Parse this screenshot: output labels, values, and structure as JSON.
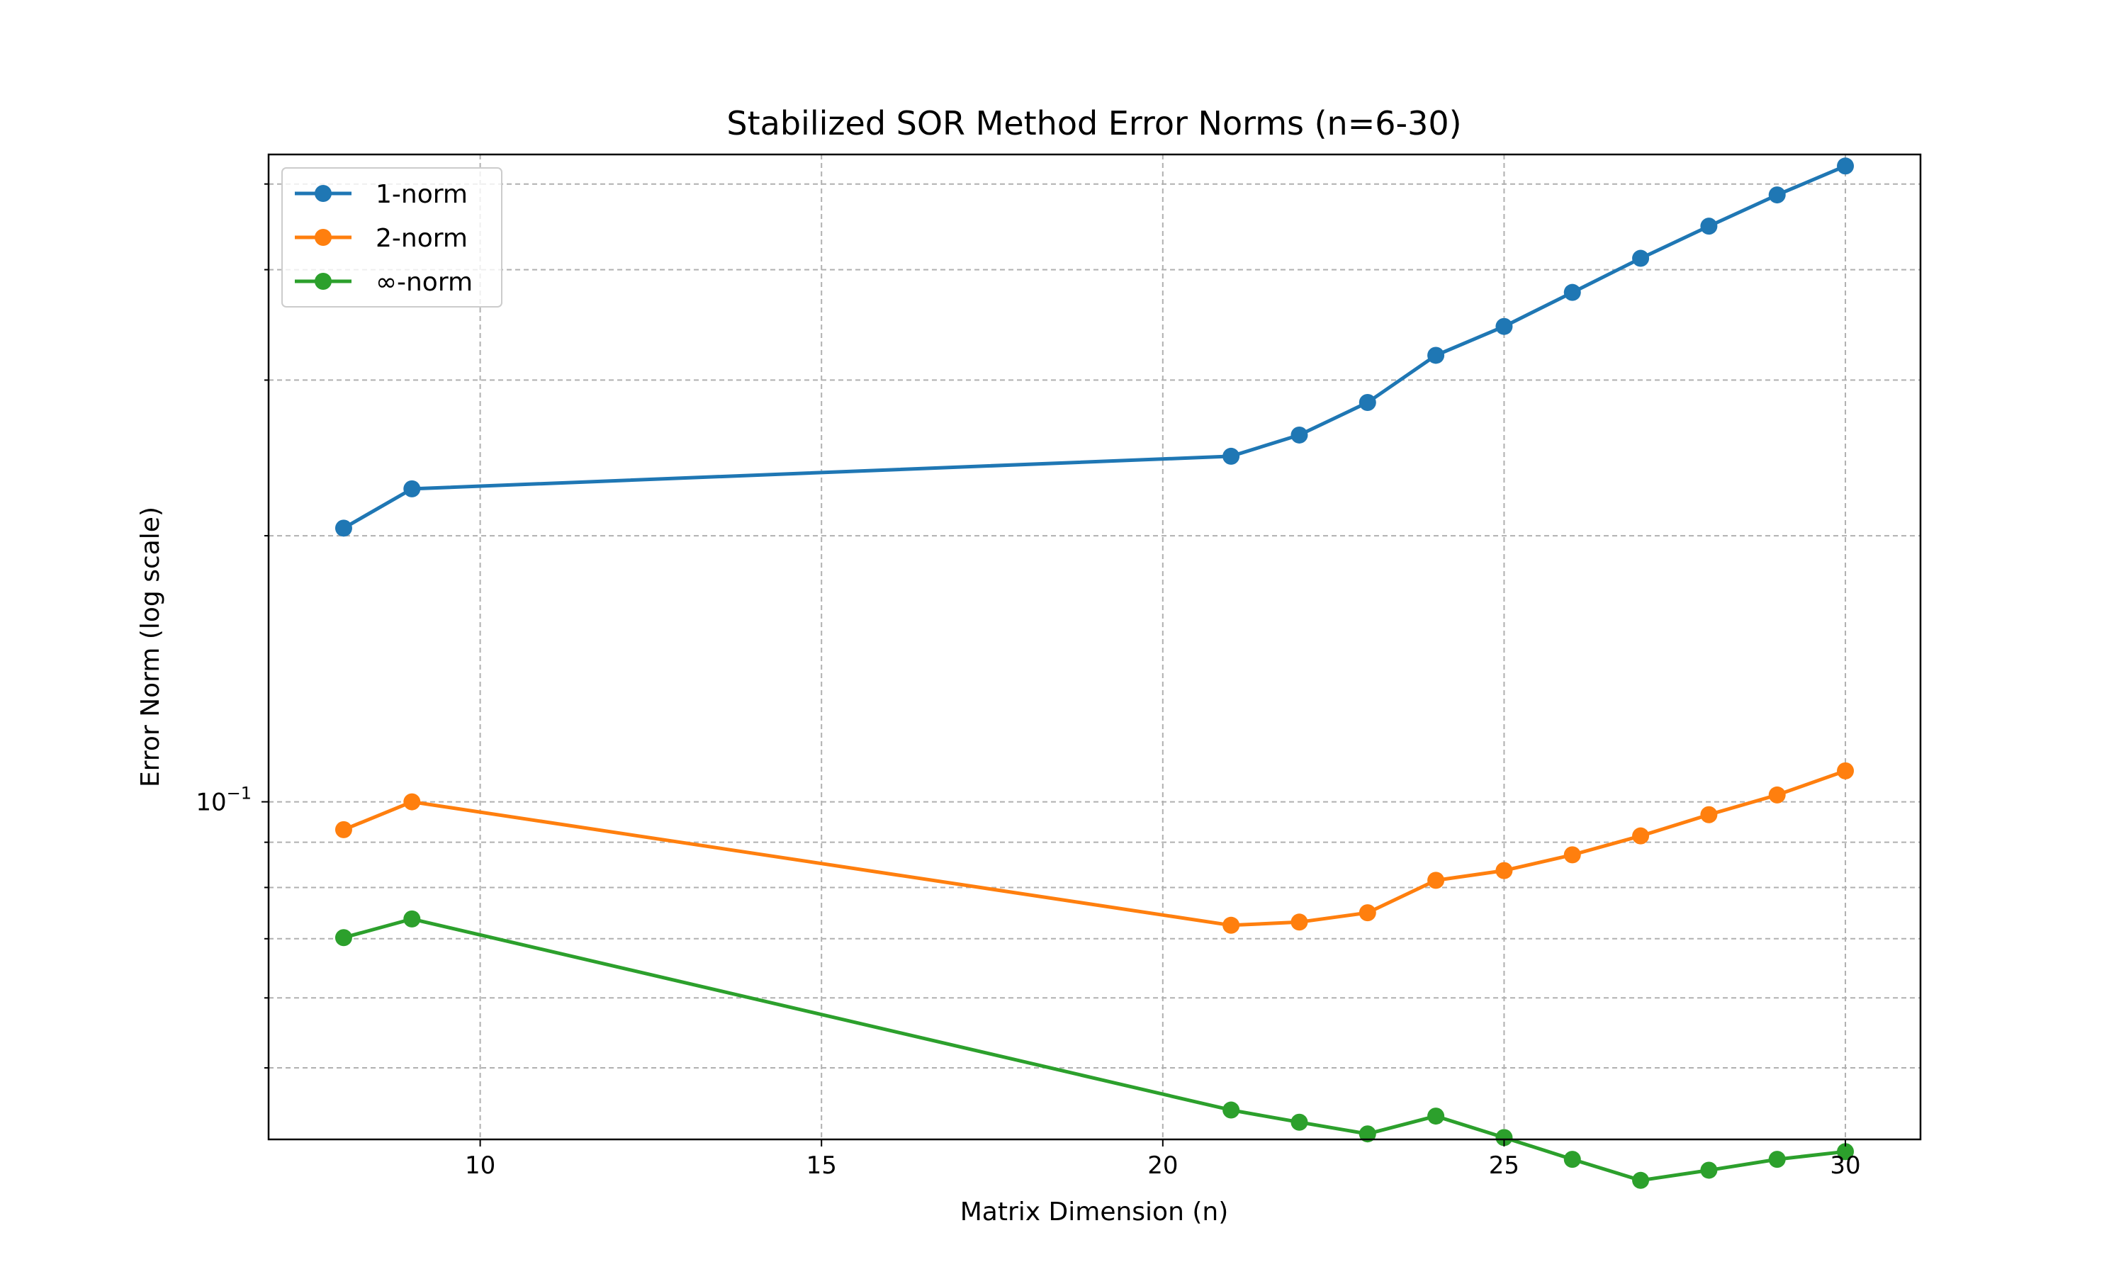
{
  "chart_data": {
    "type": "line",
    "title": "Stabilized SOR Method Error Norms (n=6-30)",
    "xlabel": "Matrix Dimension (n)",
    "ylabel": "Error Norm (log scale)",
    "yscale": "log",
    "grid": true,
    "legend_position": "upper-left",
    "xlim": [
      6.9,
      31.1
    ],
    "ylim": [
      0.0415,
      0.54
    ],
    "xticks": [
      10,
      15,
      20,
      25,
      30
    ],
    "xtick_labels": [
      "10",
      "15",
      "20",
      "25",
      "30"
    ],
    "ytick_major_labels": [
      {
        "value": 0.1,
        "label": "10",
        "exponent": "−1"
      }
    ],
    "x": [
      8,
      9,
      21,
      22,
      23,
      24,
      25,
      26,
      27,
      28,
      29,
      30
    ],
    "series": [
      {
        "name": "1-norm",
        "color": "#1f77b4",
        "values": [
          0.204,
          0.226,
          0.246,
          0.26,
          0.283,
          0.32,
          0.345,
          0.377,
          0.412,
          0.448,
          0.486,
          0.524
        ]
      },
      {
        "name": "2-norm",
        "color": "#ff7f0e",
        "values": [
          0.093,
          0.1,
          0.0725,
          0.0731,
          0.0749,
          0.0815,
          0.0836,
          0.0871,
          0.0915,
          0.0967,
          0.1018,
          0.1084
        ]
      },
      {
        "name": "∞-norm",
        "color": "#2ca02c",
        "values": [
          0.0702,
          0.0737,
          0.0448,
          0.0434,
          0.0421,
          0.0441,
          0.0417,
          0.0394,
          0.0373,
          0.0383,
          0.0394,
          0.0402
        ]
      }
    ]
  }
}
